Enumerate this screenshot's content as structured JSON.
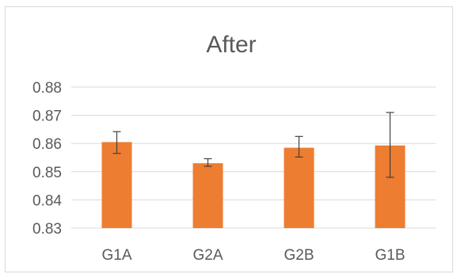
{
  "chart_data": {
    "type": "bar",
    "title": "After",
    "xlabel": "",
    "ylabel": "",
    "categories": [
      "G1A",
      "G2A",
      "G2B",
      "G1B"
    ],
    "values": [
      0.8605,
      0.853,
      0.8585,
      0.8593
    ],
    "error_plus": [
      0.0037,
      0.0016,
      0.004,
      0.0117
    ],
    "error_minus": [
      0.004,
      0.0011,
      0.0033,
      0.0113
    ],
    "ylim": [
      0.83,
      0.88
    ],
    "yticks": [
      0.83,
      0.84,
      0.85,
      0.86,
      0.87,
      0.88
    ],
    "ytick_labels": [
      "0.83",
      "0.84",
      "0.85",
      "0.86",
      "0.87",
      "0.88"
    ],
    "grid": true,
    "legend": "none",
    "bar_color": "#ed7d31"
  }
}
